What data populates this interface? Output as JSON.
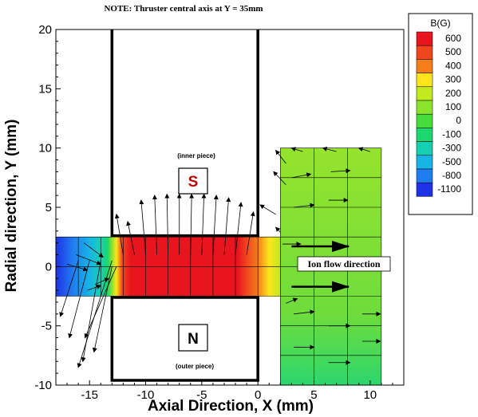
{
  "chart_data": {
    "type": "contour",
    "title": "NOTE: Thruster central axis at Y = 35mm",
    "xlabel": "Axial Direction, X (mm)",
    "ylabel": "Radial direction, Y (mm)",
    "xlim": [
      -18,
      13
    ],
    "ylim": [
      -10,
      20
    ],
    "xticks": [
      -15,
      -10,
      -5,
      0,
      5,
      10
    ],
    "yticks": [
      -10,
      -5,
      0,
      5,
      10,
      15,
      20
    ],
    "grid": false,
    "legend": {
      "title": "B(G)",
      "placement": "top-right",
      "levels": [
        {
          "label": "600",
          "color": "#e8141e"
        },
        {
          "label": "500",
          "color": "#f0461e"
        },
        {
          "label": "400",
          "color": "#f57d1a"
        },
        {
          "label": "300",
          "color": "#fde41c"
        },
        {
          "label": "200",
          "color": "#c2e81e"
        },
        {
          "label": "100",
          "color": "#8ce32d"
        },
        {
          "label": "0",
          "color": "#46dc3c"
        },
        {
          "label": "-100",
          "color": "#1cd66e"
        },
        {
          "label": "-300",
          "color": "#18cfb4"
        },
        {
          "label": "-500",
          "color": "#17b4e6"
        },
        {
          "label": "-800",
          "color": "#1f7df0"
        },
        {
          "label": "-1100",
          "color": "#1e32e6"
        }
      ]
    },
    "field_regions": [
      {
        "name": "channel",
        "x": [
          -18,
          2
        ],
        "y": [
          -2.5,
          2.5
        ]
      },
      {
        "name": "plume",
        "x": [
          2,
          11
        ],
        "y": [
          -10,
          10
        ]
      }
    ],
    "channel_color_profile": [
      {
        "x": -18,
        "value": -1100
      },
      {
        "x": -16.5,
        "value": -800
      },
      {
        "x": -15,
        "value": -500
      },
      {
        "x": -14,
        "value": -300
      },
      {
        "x": -13.4,
        "value": -100
      },
      {
        "x": -13,
        "value": 100
      },
      {
        "x": -12.6,
        "value": 300
      },
      {
        "x": -12.1,
        "value": 500
      },
      {
        "x": -11.3,
        "value": 600
      },
      {
        "x": -1.8,
        "value": 600
      },
      {
        "x": -1,
        "value": 500
      },
      {
        "x": 0,
        "value": 400
      },
      {
        "x": 1,
        "value": 300
      },
      {
        "x": 2,
        "value": 200
      }
    ],
    "channel_grid": {
      "x": [
        -18,
        -16,
        -14,
        -12,
        -10,
        -8,
        -6,
        -4,
        -2,
        0,
        2
      ],
      "y": [
        -2.5,
        0,
        2.5
      ]
    },
    "plume_grid": {
      "x": [
        2,
        5,
        8,
        11
      ],
      "y": [
        -10,
        -7.5,
        -5,
        -2.5,
        0,
        2.5,
        5,
        7.5,
        10
      ]
    },
    "walls": [
      {
        "name": "inner-piece",
        "x": [
          -13,
          -13,
          0,
          0
        ],
        "y": [
          20,
          2.6,
          2.6,
          20
        ]
      },
      {
        "name": "outer-piece",
        "x": [
          -13,
          0,
          0,
          -13,
          -13
        ],
        "y": [
          -2.6,
          -2.6,
          -9.6,
          -9.6,
          -2.6
        ]
      }
    ],
    "vectors_channel": [
      {
        "x0": -13,
        "y0": 0.5,
        "x1": -16,
        "y1": -8.5
      },
      {
        "x0": -14,
        "y0": 0.5,
        "x1": -15.6,
        "y1": -8
      },
      {
        "x0": -15,
        "y0": 0.5,
        "x1": -16.8,
        "y1": -6
      },
      {
        "x0": -16,
        "y0": 0.5,
        "x1": -17.6,
        "y1": -4.2
      },
      {
        "x0": -13,
        "y0": 0,
        "x1": -14.6,
        "y1": -7.2
      },
      {
        "x0": -12.6,
        "y0": 0,
        "x1": -15.4,
        "y1": -6
      },
      {
        "x0": -11,
        "y0": 1,
        "x1": -11.6,
        "y1": 3.8
      },
      {
        "x0": -10,
        "y0": 1,
        "x1": -10.4,
        "y1": 5.6
      },
      {
        "x0": -9,
        "y0": 1,
        "x1": -9.2,
        "y1": 6
      },
      {
        "x0": -8,
        "y0": 1,
        "x1": -8.1,
        "y1": 6.1
      },
      {
        "x0": -7,
        "y0": 1,
        "x1": -7,
        "y1": 6.1
      },
      {
        "x0": -6,
        "y0": 1,
        "x1": -5.9,
        "y1": 6.1
      },
      {
        "x0": -5,
        "y0": 1,
        "x1": -4.8,
        "y1": 6.1
      },
      {
        "x0": -4,
        "y0": 1,
        "x1": -3.7,
        "y1": 6
      },
      {
        "x0": -3,
        "y0": 1,
        "x1": -2.6,
        "y1": 5.8
      },
      {
        "x0": -2,
        "y0": 1,
        "x1": -1.5,
        "y1": 5.4
      },
      {
        "x0": -1,
        "y0": 1,
        "x1": -0.4,
        "y1": 4.6
      },
      {
        "x0": -12,
        "y0": 1,
        "x1": -12.6,
        "y1": 4.4
      },
      {
        "x0": -15.5,
        "y0": 2,
        "x1": -13.8,
        "y1": 0.8
      },
      {
        "x0": -16.2,
        "y0": 1,
        "x1": -14,
        "y1": 0.2
      },
      {
        "x0": -17,
        "y0": 0.2,
        "x1": -15.2,
        "y1": -0.3
      },
      {
        "x0": -14.5,
        "y0": -1.5,
        "x1": -13.3,
        "y1": -1
      },
      {
        "x0": -15.2,
        "y0": -2,
        "x1": -14,
        "y1": -1.6
      }
    ],
    "vectors_plume": [
      {
        "x0": 2.5,
        "y0": 8.7,
        "x1": 1.6,
        "y1": 9.8
      },
      {
        "x0": 4,
        "y0": 9.7,
        "x1": 3,
        "y1": 10
      },
      {
        "x0": 7,
        "y0": 9.7,
        "x1": 5.8,
        "y1": 10
      },
      {
        "x0": 10,
        "y0": 9.7,
        "x1": 9,
        "y1": 10
      },
      {
        "x0": 2.5,
        "y0": 6.9,
        "x1": 1.4,
        "y1": 8
      },
      {
        "x0": 1.6,
        "y0": 4.4,
        "x1": 0.2,
        "y1": 5.2
      },
      {
        "x0": 2,
        "y0": 2.9,
        "x1": 1.6,
        "y1": 3.3
      },
      {
        "x0": 3.2,
        "y0": 5,
        "x1": 5,
        "y1": 5.2
      },
      {
        "x0": 6.3,
        "y0": 5.6,
        "x1": 8,
        "y1": 5.6
      },
      {
        "x0": 3,
        "y0": 7.5,
        "x1": 4.7,
        "y1": 7.8
      },
      {
        "x0": 6.5,
        "y0": 8,
        "x1": 8.2,
        "y1": 8.1
      },
      {
        "x0": 2.2,
        "y0": 1.9,
        "x1": 3.8,
        "y1": 1.9
      },
      {
        "x0": 3.2,
        "y0": -4,
        "x1": 5,
        "y1": -3.8
      },
      {
        "x0": 6.3,
        "y0": -5,
        "x1": 8.2,
        "y1": -5
      },
      {
        "x0": 3.2,
        "y0": -6.8,
        "x1": 5,
        "y1": -6.8
      },
      {
        "x0": 6.3,
        "y0": -8.1,
        "x1": 8.2,
        "y1": -8.1
      },
      {
        "x0": 9.3,
        "y0": -6.3,
        "x1": 10.9,
        "y1": -6.3
      },
      {
        "x0": 9.3,
        "y0": -4,
        "x1": 10.9,
        "y1": -4
      },
      {
        "x0": 2.5,
        "y0": -3.1,
        "x1": 3.5,
        "y1": -2.7
      }
    ],
    "flow_arrows": [
      {
        "x0": 3,
        "y0": 1.7,
        "x1": 8.1,
        "y1": 1.7
      },
      {
        "x0": 3,
        "y0": -1.7,
        "x1": 8.1,
        "y1": -1.7
      }
    ],
    "annotations": {
      "inner_piece_label": "(inner piece)",
      "outer_piece_label": "(outer piece)",
      "s_pole": "S",
      "n_pole": "N",
      "ion_flow": "Ion flow direction"
    }
  },
  "colors": {
    "s_pole": "#c00000",
    "n_pole": "#000000",
    "plume_base": "#6fdc3c",
    "plume_light": "#96e32d",
    "plume_bottom": "#2cd66e"
  }
}
